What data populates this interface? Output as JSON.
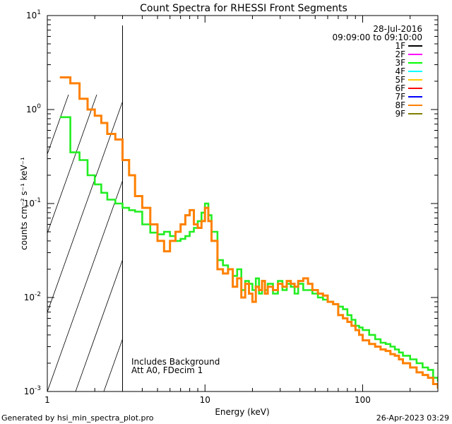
{
  "chart_data": {
    "type": "line",
    "title": "Count Spectra for RHESSI Front Segments",
    "xlabel": "Energy (keV)",
    "ylabel": "counts cm⁻² s⁻¹ keV⁻¹",
    "x_scale": "log",
    "y_scale": "log",
    "xlim": [
      1,
      300
    ],
    "ylim": [
      0.001,
      10
    ],
    "x_ticks": [
      {
        "value": 1,
        "label": "1"
      },
      {
        "value": 10,
        "label": "10"
      },
      {
        "value": 100,
        "label": "100"
      }
    ],
    "y_ticks": [
      {
        "value": 10,
        "base": "10",
        "exp": "1"
      },
      {
        "value": 1,
        "base": "10",
        "exp": "0"
      },
      {
        "value": 0.1,
        "base": "10",
        "exp": "-1"
      },
      {
        "value": 0.01,
        "base": "10",
        "exp": "-2"
      },
      {
        "value": 0.001,
        "base": "10",
        "exp": "-3"
      }
    ],
    "shaded_region": {
      "x_from": 1,
      "x_to": 3,
      "style": "hatched"
    },
    "date": "28-Jul-2016",
    "time_range": "09:09:00 to 09:10:00",
    "legend": [
      {
        "name": "1F",
        "color": "#000000"
      },
      {
        "name": "2F",
        "color": "#ff00ff"
      },
      {
        "name": "3F",
        "color": "#00ff00"
      },
      {
        "name": "4F",
        "color": "#00ffff"
      },
      {
        "name": "5F",
        "color": "#ffcc00"
      },
      {
        "name": "6F",
        "color": "#ff0000"
      },
      {
        "name": "7F",
        "color": "#0000ff"
      },
      {
        "name": "8F",
        "color": "#ff8000"
      },
      {
        "name": "9F",
        "color": "#808000"
      }
    ],
    "annotations": [
      "Includes Background",
      "Att A0, FDecim 1"
    ],
    "series": [
      {
        "name": "3F",
        "color": "#22ee22",
        "points": [
          [
            1.2,
            0.83
          ],
          [
            1.4,
            0.35
          ],
          [
            1.6,
            0.29
          ],
          [
            1.8,
            0.2
          ],
          [
            2.0,
            0.16
          ],
          [
            2.2,
            0.13
          ],
          [
            2.4,
            0.11
          ],
          [
            2.7,
            0.1
          ],
          [
            3.0,
            0.09
          ],
          [
            3.3,
            0.085
          ],
          [
            3.6,
            0.082
          ],
          [
            4.0,
            0.06
          ],
          [
            4.5,
            0.049
          ],
          [
            5.0,
            0.047
          ],
          [
            5.5,
            0.05
          ],
          [
            6.0,
            0.045
          ],
          [
            6.5,
            0.04
          ],
          [
            7.0,
            0.042
          ],
          [
            7.5,
            0.045
          ],
          [
            8.0,
            0.05
          ],
          [
            8.5,
            0.055
          ],
          [
            9.0,
            0.065
          ],
          [
            9.5,
            0.08
          ],
          [
            10.0,
            0.1
          ],
          [
            10.5,
            0.075
          ],
          [
            11.0,
            0.05
          ],
          [
            12,
            0.025
          ],
          [
            13,
            0.022
          ],
          [
            14,
            0.02
          ],
          [
            15,
            0.017
          ],
          [
            16,
            0.02
          ],
          [
            17,
            0.012
          ],
          [
            18,
            0.015
          ],
          [
            19,
            0.014
          ],
          [
            20,
            0.012
          ],
          [
            21,
            0.016
          ],
          [
            22,
            0.011
          ],
          [
            23,
            0.015
          ],
          [
            24,
            0.012
          ],
          [
            25,
            0.014
          ],
          [
            27,
            0.011
          ],
          [
            29,
            0.015
          ],
          [
            31,
            0.012
          ],
          [
            33,
            0.014
          ],
          [
            35,
            0.013
          ],
          [
            37,
            0.011
          ],
          [
            39,
            0.014
          ],
          [
            42,
            0.012
          ],
          [
            45,
            0.012
          ],
          [
            48,
            0.011
          ],
          [
            52,
            0.01
          ],
          [
            56,
            0.0095
          ],
          [
            60,
            0.009
          ],
          [
            65,
            0.0085
          ],
          [
            70,
            0.008
          ],
          [
            75,
            0.0075
          ],
          [
            80,
            0.0065
          ],
          [
            85,
            0.0058
          ],
          [
            90,
            0.005
          ],
          [
            95,
            0.0048
          ],
          [
            100,
            0.0045
          ],
          [
            110,
            0.004
          ],
          [
            120,
            0.0036
          ],
          [
            130,
            0.0033
          ],
          [
            140,
            0.0032
          ],
          [
            150,
            0.003
          ],
          [
            160,
            0.0028
          ],
          [
            170,
            0.0026
          ],
          [
            180,
            0.0024
          ],
          [
            200,
            0.0022
          ],
          [
            220,
            0.002
          ],
          [
            240,
            0.0018
          ],
          [
            260,
            0.0017
          ],
          [
            280,
            0.0014
          ],
          [
            300,
            0.0013
          ]
        ]
      },
      {
        "name": "8F",
        "color": "#ff8000",
        "points": [
          [
            1.2,
            2.2
          ],
          [
            1.4,
            1.9
          ],
          [
            1.6,
            1.3
          ],
          [
            1.8,
            1.0
          ],
          [
            2.0,
            0.86
          ],
          [
            2.2,
            0.72
          ],
          [
            2.4,
            0.55
          ],
          [
            2.7,
            0.48
          ],
          [
            3.0,
            0.29
          ],
          [
            3.3,
            0.2
          ],
          [
            3.6,
            0.12
          ],
          [
            4.0,
            0.09
          ],
          [
            4.5,
            0.06
          ],
          [
            5.0,
            0.04
          ],
          [
            5.5,
            0.031
          ],
          [
            6.0,
            0.04
          ],
          [
            6.5,
            0.05
          ],
          [
            7.0,
            0.06
          ],
          [
            7.5,
            0.075
          ],
          [
            8.0,
            0.085
          ],
          [
            8.5,
            0.06
          ],
          [
            9.0,
            0.055
          ],
          [
            9.5,
            0.065
          ],
          [
            10.0,
            0.09
          ],
          [
            10.5,
            0.065
          ],
          [
            11.0,
            0.04
          ],
          [
            12,
            0.02
          ],
          [
            13,
            0.018
          ],
          [
            14,
            0.02
          ],
          [
            15,
            0.013
          ],
          [
            16,
            0.016
          ],
          [
            17,
            0.01
          ],
          [
            18,
            0.014
          ],
          [
            19,
            0.011
          ],
          [
            20,
            0.009
          ],
          [
            21,
            0.013
          ],
          [
            22,
            0.012
          ],
          [
            23,
            0.015
          ],
          [
            24,
            0.011
          ],
          [
            25,
            0.013
          ],
          [
            27,
            0.012
          ],
          [
            29,
            0.014
          ],
          [
            31,
            0.013
          ],
          [
            33,
            0.015
          ],
          [
            35,
            0.014
          ],
          [
            37,
            0.013
          ],
          [
            39,
            0.015
          ],
          [
            42,
            0.016
          ],
          [
            45,
            0.014
          ],
          [
            48,
            0.012
          ],
          [
            52,
            0.011
          ],
          [
            56,
            0.0105
          ],
          [
            60,
            0.009
          ],
          [
            65,
            0.0085
          ],
          [
            70,
            0.0065
          ],
          [
            75,
            0.006
          ],
          [
            80,
            0.0055
          ],
          [
            85,
            0.005
          ],
          [
            90,
            0.0045
          ],
          [
            95,
            0.004
          ],
          [
            100,
            0.0035
          ],
          [
            110,
            0.0032
          ],
          [
            120,
            0.003
          ],
          [
            130,
            0.0028
          ],
          [
            140,
            0.0027
          ],
          [
            150,
            0.0025
          ],
          [
            160,
            0.0024
          ],
          [
            170,
            0.0022
          ],
          [
            180,
            0.002
          ],
          [
            200,
            0.0018
          ],
          [
            220,
            0.0016
          ],
          [
            240,
            0.0015
          ],
          [
            260,
            0.0014
          ],
          [
            280,
            0.0012
          ],
          [
            300,
            0.0011
          ]
        ]
      }
    ]
  },
  "footer": {
    "generated_by": "Generated by hsi_min_spectra_plot.pro",
    "timestamp": "26-Apr-2023 03:29"
  }
}
